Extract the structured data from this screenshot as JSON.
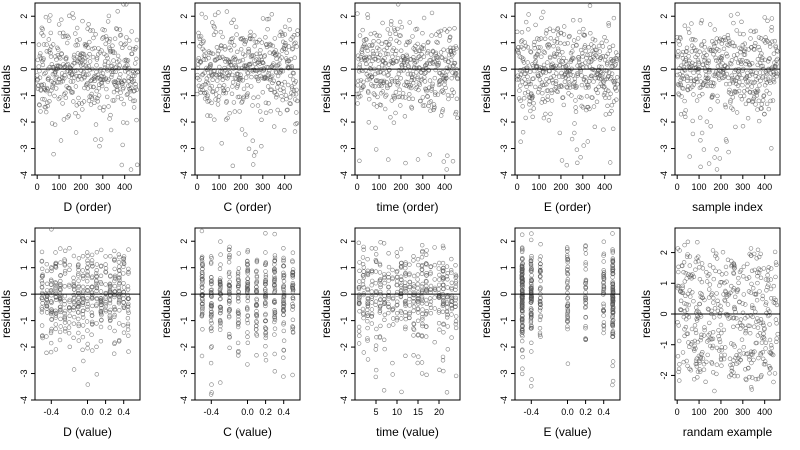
{
  "chart_data": [
    {
      "type": "scatter",
      "title": "",
      "xlabel": "D (order)",
      "ylabel": "residuals",
      "xlim": [
        -10,
        470
      ],
      "ylim": [
        -4,
        2.5
      ],
      "xticks": [
        0,
        100,
        200,
        300,
        400
      ],
      "xticklabels": [
        "0",
        "100",
        "200",
        "300",
        "400"
      ],
      "yticks": [
        -4,
        -3,
        -2,
        -1,
        0,
        1,
        2
      ],
      "yticklabels": [
        "-4",
        "-3",
        "-2",
        "-1",
        "0",
        "1",
        "2"
      ],
      "hline": 0,
      "points": {
        "generator": "order",
        "n": 460,
        "seed": 11,
        "spread": 0.85
      }
    },
    {
      "type": "scatter",
      "title": "",
      "xlabel": "C (order)",
      "ylabel": "residuals",
      "xlim": [
        -10,
        470
      ],
      "ylim": [
        -4,
        2.5
      ],
      "xticks": [
        0,
        100,
        200,
        300,
        400
      ],
      "xticklabels": [
        "0",
        "100",
        "200",
        "300",
        "400"
      ],
      "yticks": [
        -4,
        -3,
        -2,
        -1,
        0,
        1,
        2
      ],
      "yticklabels": [
        "-4",
        "-3",
        "-2",
        "-1",
        "0",
        "1",
        "2"
      ],
      "hline": 0,
      "points": {
        "generator": "order",
        "n": 460,
        "seed": 23,
        "spread": 0.85
      }
    },
    {
      "type": "scatter",
      "title": "",
      "xlabel": "time (order)",
      "ylabel": "residuals",
      "xlim": [
        -10,
        470
      ],
      "ylim": [
        -4,
        2.5
      ],
      "xticks": [
        0,
        100,
        200,
        300,
        400
      ],
      "xticklabels": [
        "0",
        "100",
        "200",
        "300",
        "400"
      ],
      "yticks": [
        -4,
        -3,
        -2,
        -1,
        0,
        1,
        2
      ],
      "yticklabels": [
        "-4",
        "-3",
        "-2",
        "-1",
        "0",
        "1",
        "2"
      ],
      "hline": 0,
      "points": {
        "generator": "order",
        "n": 460,
        "seed": 37,
        "spread": 0.85
      }
    },
    {
      "type": "scatter",
      "title": "",
      "xlabel": "E (order)",
      "ylabel": "residuals",
      "xlim": [
        -10,
        470
      ],
      "ylim": [
        -4,
        2.5
      ],
      "xticks": [
        0,
        100,
        200,
        300,
        400
      ],
      "xticklabels": [
        "0",
        "100",
        "200",
        "300",
        "400"
      ],
      "yticks": [
        -4,
        -3,
        -2,
        -1,
        0,
        1,
        2
      ],
      "yticklabels": [
        "-4",
        "-3",
        "-2",
        "-1",
        "0",
        "1",
        "2"
      ],
      "hline": 0,
      "points": {
        "generator": "order",
        "n": 460,
        "seed": 41,
        "spread": 0.85
      }
    },
    {
      "type": "scatter",
      "title": "",
      "xlabel": "sample index",
      "ylabel": "residuals",
      "xlim": [
        -10,
        470
      ],
      "ylim": [
        -4,
        2.5
      ],
      "xticks": [
        0,
        100,
        200,
        300,
        400
      ],
      "xticklabels": [
        "0",
        "100",
        "200",
        "300",
        "400"
      ],
      "yticks": [
        -4,
        -3,
        -2,
        -1,
        0,
        1,
        2
      ],
      "yticklabels": [
        "-4",
        "-3",
        "-2",
        "-1",
        "0",
        "1",
        "2"
      ],
      "hline": 0,
      "points": {
        "generator": "order",
        "n": 460,
        "seed": 53,
        "spread": 0.85
      }
    },
    {
      "type": "scatter",
      "title": "",
      "xlabel": "D (value)",
      "ylabel": "residuals",
      "xlim": [
        -0.58,
        0.58
      ],
      "ylim": [
        -4,
        2.5
      ],
      "xticks": [
        -0.4,
        0.0,
        0.2,
        0.4
      ],
      "xticklabels": [
        "-0.4",
        "0.0",
        "0.2",
        "0.4"
      ],
      "yticks": [
        -4,
        -3,
        -2,
        -1,
        0,
        1,
        2
      ],
      "yticklabels": [
        "-4",
        "-3",
        "-2",
        "-1",
        "0",
        "1",
        "2"
      ],
      "hline": 0,
      "points": {
        "generator": "discrete",
        "n": 460,
        "seed": 61,
        "spread": 0.85,
        "levels": [
          -0.5,
          -0.45,
          -0.4,
          -0.35,
          -0.3,
          -0.25,
          -0.2,
          -0.15,
          -0.1,
          -0.05,
          0.0,
          0.05,
          0.1,
          0.15,
          0.2,
          0.25,
          0.3,
          0.35,
          0.4,
          0.45
        ]
      }
    },
    {
      "type": "scatter",
      "title": "",
      "xlabel": "C (value)",
      "ylabel": "residuals",
      "xlim": [
        -0.58,
        0.58
      ],
      "ylim": [
        -4,
        2.5
      ],
      "xticks": [
        -0.4,
        0.0,
        0.2,
        0.4
      ],
      "xticklabels": [
        "-0.4",
        "0.0",
        "0.2",
        "0.4"
      ],
      "yticks": [
        -4,
        -3,
        -2,
        -1,
        0,
        1,
        2
      ],
      "yticklabels": [
        "-4",
        "-3",
        "-2",
        "-1",
        "0",
        "1",
        "2"
      ],
      "hline": 0,
      "points": {
        "generator": "discrete",
        "n": 460,
        "seed": 67,
        "spread": 0.85,
        "levels": [
          -0.5,
          -0.4,
          -0.3,
          -0.2,
          -0.1,
          0.0,
          0.1,
          0.2,
          0.3,
          0.4,
          0.5
        ]
      }
    },
    {
      "type": "scatter",
      "title": "",
      "xlabel": "time (value)",
      "ylabel": "residuals",
      "xlim": [
        0,
        25
      ],
      "ylim": [
        -4,
        2.5
      ],
      "xticks": [
        5,
        10,
        15,
        20
      ],
      "xticklabels": [
        "5",
        "10",
        "15",
        "20"
      ],
      "yticks": [
        -4,
        -3,
        -2,
        -1,
        0,
        1,
        2
      ],
      "yticklabels": [
        "-4",
        "-3",
        "-2",
        "-1",
        "0",
        "1",
        "2"
      ],
      "hline": 0,
      "points": {
        "generator": "discrete",
        "n": 460,
        "seed": 71,
        "spread": 0.85,
        "levels": [
          1,
          2,
          3,
          4,
          5,
          6,
          7,
          8,
          9,
          10,
          11,
          12,
          13,
          14,
          15,
          16,
          17,
          18,
          19,
          20,
          21,
          22,
          23,
          24
        ]
      }
    },
    {
      "type": "scatter",
      "title": "",
      "xlabel": "E (value)",
      "ylabel": "residuals",
      "xlim": [
        -0.58,
        0.58
      ],
      "ylim": [
        -4,
        2.5
      ],
      "xticks": [
        -0.4,
        0.0,
        0.2,
        0.4
      ],
      "xticklabels": [
        "-0.4",
        "0.0",
        "0.2",
        "0.4"
      ],
      "yticks": [
        -4,
        -3,
        -2,
        -1,
        0,
        1,
        2
      ],
      "yticklabels": [
        "-4",
        "-3",
        "-2",
        "-1",
        "0",
        "1",
        "2"
      ],
      "hline": 0,
      "points": {
        "generator": "discrete",
        "n": 460,
        "seed": 79,
        "spread": 0.85,
        "levels": [
          -0.5,
          -0.5,
          -0.5,
          -0.4,
          -0.4,
          -0.3,
          0.0,
          0.2,
          0.4,
          0.5,
          0.5,
          0.5
        ]
      }
    },
    {
      "type": "scatter",
      "title": "",
      "xlabel": "randam example",
      "ylabel": "residuals",
      "xlim": [
        -10,
        470
      ],
      "ylim": [
        -2.8,
        2.8
      ],
      "xticks": [
        0,
        100,
        200,
        300,
        400
      ],
      "xticklabels": [
        "0",
        "100",
        "200",
        "300",
        "400"
      ],
      "yticks": [
        -2,
        -1,
        0,
        1,
        2
      ],
      "yticklabels": [
        "-2",
        "-1",
        "0",
        "1",
        "2"
      ],
      "hline": 0,
      "points": {
        "generator": "uniformish",
        "n": 460,
        "seed": 89,
        "spread": 1.0
      }
    }
  ]
}
